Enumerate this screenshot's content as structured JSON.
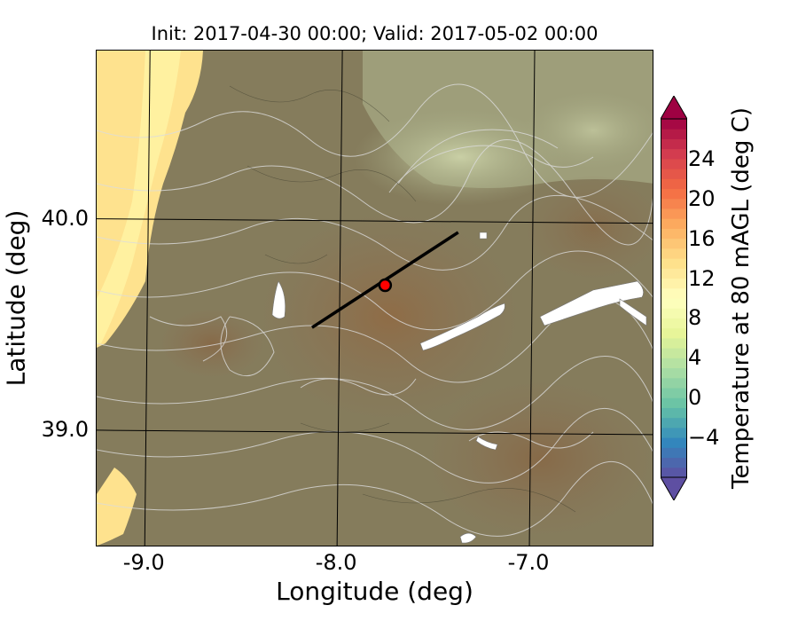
{
  "map": {
    "title": "Init: 2017-04-30 00:00; Valid: 2017-05-02 00:00",
    "xlabel": "Longitude (deg)",
    "ylabel": "Latitude (deg)",
    "x_ticks": [
      {
        "value": -9.0,
        "label": "-9.0"
      },
      {
        "value": -8.0,
        "label": "-8.0"
      },
      {
        "value": -7.0,
        "label": "-7.0"
      }
    ],
    "y_ticks": [
      {
        "value": 40.0,
        "label": "40.0"
      },
      {
        "value": 39.0,
        "label": "39.0"
      }
    ],
    "x_range": [
      -9.25,
      -6.35
    ],
    "y_range": [
      38.45,
      40.8
    ],
    "transect": {
      "start": [
        -8.13,
        39.49
      ],
      "end": [
        -7.37,
        39.94
      ],
      "color": "#000000"
    },
    "marker": {
      "lon": -7.75,
      "lat": 39.69,
      "fill": "#ff0000",
      "stroke": "#000000"
    },
    "colors": {
      "land": "#8a7f5e",
      "ocean_warm": "#fedf8a",
      "ocean_light": "#fff2a0",
      "highland": "#a7ad86",
      "contour": "#d8d8d8",
      "water": "#ffffff"
    }
  },
  "colorbar": {
    "label": "Temperature at 80 mAGL (deg C)",
    "min": -8,
    "max": 28,
    "extend": "both",
    "colormap": "Spectral_r",
    "ticks": [
      {
        "value": -4,
        "label": "−4"
      },
      {
        "value": 0,
        "label": "0"
      },
      {
        "value": 4,
        "label": "4"
      },
      {
        "value": 8,
        "label": "8"
      },
      {
        "value": 12,
        "label": "12"
      },
      {
        "value": 16,
        "label": "16"
      },
      {
        "value": 20,
        "label": "20"
      },
      {
        "value": 24,
        "label": "24"
      }
    ]
  }
}
